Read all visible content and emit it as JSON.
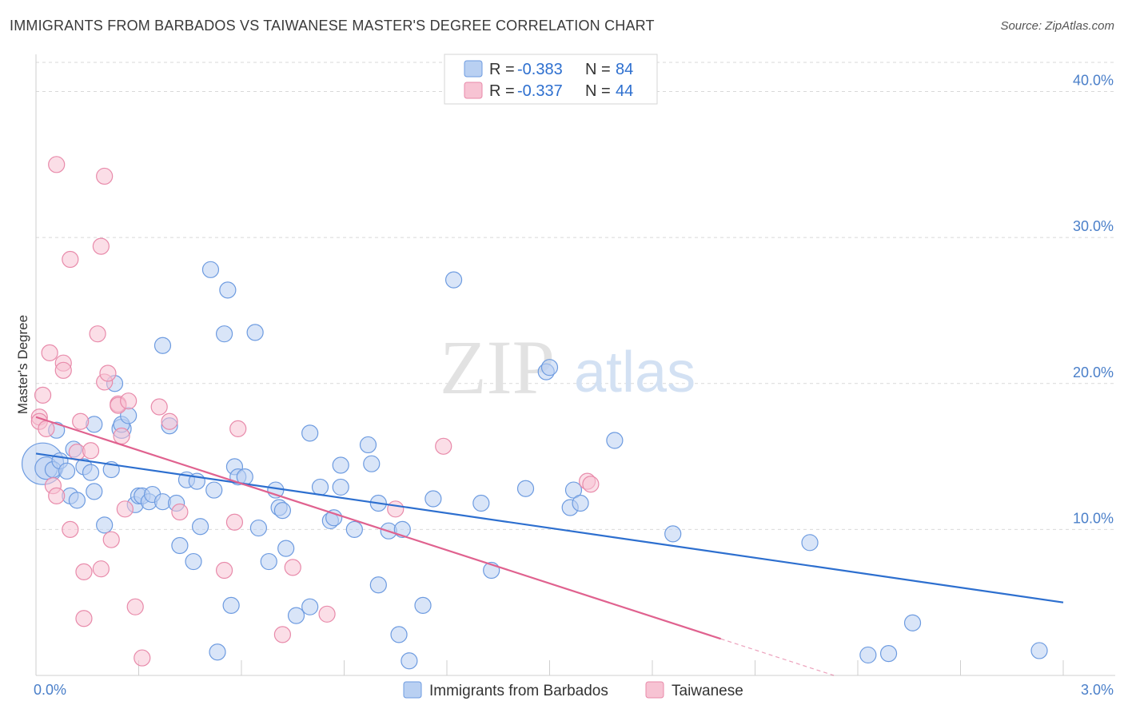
{
  "title": "IMMIGRANTS FROM BARBADOS VS TAIWANESE MASTER'S DEGREE CORRELATION CHART",
  "source": "Source: ZipAtlas.com",
  "watermark": {
    "zip": "ZIP",
    "atlas": "atlas"
  },
  "colors": {
    "blue_fill": "#b9d0f2",
    "blue_stroke": "#6d9be0",
    "blue_line": "#2d6fcf",
    "pink_fill": "#f7c3d3",
    "pink_stroke": "#e88aaa",
    "pink_line": "#e0628f",
    "tick": "#4a7fc9",
    "grid": "#d9d9d9"
  },
  "legend": {
    "rows": [
      {
        "r_label": "R = ",
        "r_value": "-0.383",
        "n_label": "N = ",
        "n_value": "84"
      },
      {
        "r_label": "R = ",
        "r_value": "-0.337",
        "n_label": "N = ",
        "n_value": "44"
      }
    ]
  },
  "chart_data": {
    "type": "scatter",
    "xlabel": "",
    "ylabel": "Master's Degree",
    "xlim": [
      0,
      3.0
    ],
    "ylim": [
      0,
      42
    ],
    "x_tick_labels": [
      "0.0%",
      "3.0%"
    ],
    "x_tick_values": [
      0,
      3.0
    ],
    "y_ticks": [
      {
        "value": 10,
        "label": "10.0%"
      },
      {
        "value": 20,
        "label": "20.0%"
      },
      {
        "value": 30,
        "label": "30.0%"
      },
      {
        "value": 40,
        "label": "40.0%"
      }
    ],
    "grid": true,
    "series": [
      {
        "name": "Immigrants from Barbados",
        "trend": {
          "x0": 0,
          "y0": 15.2,
          "x1": 3.0,
          "y1": 5.0,
          "dash_from": null
        },
        "points": [
          [
            0.02,
            14.5,
            26
          ],
          [
            0.03,
            14.2,
            14
          ],
          [
            0.05,
            14.1,
            10
          ],
          [
            0.06,
            16.8,
            10
          ],
          [
            0.07,
            14.7,
            10
          ],
          [
            0.09,
            14.0,
            10
          ],
          [
            0.1,
            12.3,
            10
          ],
          [
            0.12,
            12.0,
            10
          ],
          [
            0.11,
            15.5,
            10
          ],
          [
            0.14,
            14.3,
            10
          ],
          [
            0.16,
            13.9,
            10
          ],
          [
            0.17,
            12.6,
            10
          ],
          [
            0.17,
            17.2,
            10
          ],
          [
            0.2,
            10.3,
            10
          ],
          [
            0.22,
            14.1,
            10
          ],
          [
            0.23,
            20.0,
            10
          ],
          [
            0.25,
            16.9,
            12
          ],
          [
            0.25,
            17.2,
            10
          ],
          [
            0.27,
            17.8,
            10
          ],
          [
            0.29,
            11.7,
            10
          ],
          [
            0.3,
            12.3,
            10
          ],
          [
            0.31,
            12.3,
            10
          ],
          [
            0.33,
            11.9,
            10
          ],
          [
            0.34,
            12.4,
            10
          ],
          [
            0.37,
            22.6,
            10
          ],
          [
            0.37,
            11.9,
            10
          ],
          [
            0.39,
            17.1,
            10
          ],
          [
            0.41,
            11.8,
            10
          ],
          [
            0.42,
            8.9,
            10
          ],
          [
            0.44,
            13.4,
            10
          ],
          [
            0.46,
            7.8,
            10
          ],
          [
            0.47,
            13.3,
            10
          ],
          [
            0.48,
            10.2,
            10
          ],
          [
            0.51,
            27.8,
            10
          ],
          [
            0.52,
            12.7,
            10
          ],
          [
            0.53,
            1.6,
            10
          ],
          [
            0.55,
            23.4,
            10
          ],
          [
            0.56,
            26.4,
            10
          ],
          [
            0.57,
            4.8,
            10
          ],
          [
            0.58,
            14.3,
            10
          ],
          [
            0.59,
            13.6,
            10
          ],
          [
            0.61,
            13.6,
            10
          ],
          [
            0.64,
            23.5,
            10
          ],
          [
            0.65,
            10.1,
            10
          ],
          [
            0.68,
            7.8,
            10
          ],
          [
            0.7,
            12.7,
            10
          ],
          [
            0.71,
            11.5,
            10
          ],
          [
            0.72,
            11.3,
            10
          ],
          [
            0.73,
            8.7,
            10
          ],
          [
            0.76,
            4.1,
            10
          ],
          [
            0.8,
            16.6,
            10
          ],
          [
            0.8,
            4.7,
            10
          ],
          [
            0.83,
            12.9,
            10
          ],
          [
            0.86,
            10.6,
            10
          ],
          [
            0.87,
            10.8,
            10
          ],
          [
            0.89,
            14.4,
            10
          ],
          [
            0.89,
            12.9,
            10
          ],
          [
            0.93,
            10.0,
            10
          ],
          [
            0.97,
            15.8,
            10
          ],
          [
            0.98,
            14.5,
            10
          ],
          [
            1.0,
            6.2,
            10
          ],
          [
            1.0,
            11.8,
            10
          ],
          [
            1.03,
            9.9,
            10
          ],
          [
            1.06,
            2.8,
            10
          ],
          [
            1.07,
            10.0,
            10
          ],
          [
            1.09,
            1.0,
            10
          ],
          [
            1.13,
            4.8,
            10
          ],
          [
            1.16,
            12.1,
            10
          ],
          [
            1.22,
            27.1,
            10
          ],
          [
            1.3,
            11.8,
            10
          ],
          [
            1.33,
            7.2,
            10
          ],
          [
            1.43,
            12.8,
            10
          ],
          [
            1.49,
            20.8,
            10
          ],
          [
            1.5,
            21.1,
            10
          ],
          [
            1.56,
            11.5,
            10
          ],
          [
            1.57,
            12.7,
            10
          ],
          [
            1.59,
            11.8,
            10
          ],
          [
            1.69,
            16.1,
            10
          ],
          [
            1.86,
            9.7,
            10
          ],
          [
            2.26,
            9.1,
            10
          ],
          [
            2.43,
            1.4,
            10
          ],
          [
            2.49,
            1.5,
            10
          ],
          [
            2.56,
            3.6,
            10
          ],
          [
            2.93,
            1.7,
            10
          ]
        ]
      },
      {
        "name": "Taiwanese",
        "trend": {
          "x0": 0,
          "y0": 17.7,
          "x1": 2.33,
          "y1": 0,
          "dash_from": 2.0
        },
        "points": [
          [
            0.01,
            17.7,
            10
          ],
          [
            0.01,
            17.4,
            10
          ],
          [
            0.02,
            19.2,
            10
          ],
          [
            0.03,
            16.9,
            10
          ],
          [
            0.04,
            22.1,
            10
          ],
          [
            0.05,
            13.0,
            10
          ],
          [
            0.06,
            12.3,
            10
          ],
          [
            0.06,
            35.0,
            10
          ],
          [
            0.08,
            21.4,
            10
          ],
          [
            0.08,
            20.9,
            10
          ],
          [
            0.1,
            10.0,
            10
          ],
          [
            0.1,
            28.5,
            10
          ],
          [
            0.12,
            15.3,
            10
          ],
          [
            0.13,
            17.4,
            10
          ],
          [
            0.14,
            7.1,
            10
          ],
          [
            0.14,
            3.9,
            10
          ],
          [
            0.16,
            15.4,
            10
          ],
          [
            0.18,
            23.4,
            10
          ],
          [
            0.19,
            29.4,
            10
          ],
          [
            0.19,
            7.3,
            10
          ],
          [
            0.2,
            34.2,
            10
          ],
          [
            0.2,
            20.1,
            10
          ],
          [
            0.21,
            20.7,
            10
          ],
          [
            0.22,
            9.3,
            10
          ],
          [
            0.24,
            18.6,
            10
          ],
          [
            0.24,
            18.5,
            10
          ],
          [
            0.25,
            16.4,
            10
          ],
          [
            0.26,
            11.4,
            10
          ],
          [
            0.27,
            18.8,
            10
          ],
          [
            0.29,
            4.7,
            10
          ],
          [
            0.31,
            1.2,
            10
          ],
          [
            0.36,
            18.4,
            10
          ],
          [
            0.39,
            17.4,
            10
          ],
          [
            0.42,
            11.2,
            10
          ],
          [
            0.55,
            7.2,
            10
          ],
          [
            0.58,
            10.5,
            10
          ],
          [
            0.59,
            16.9,
            10
          ],
          [
            0.72,
            2.8,
            10
          ],
          [
            0.75,
            7.4,
            10
          ],
          [
            0.85,
            4.2,
            10
          ],
          [
            1.05,
            11.4,
            10
          ],
          [
            1.19,
            15.7,
            10
          ],
          [
            1.61,
            13.3,
            10
          ],
          [
            1.62,
            13.1,
            10
          ]
        ]
      }
    ]
  }
}
